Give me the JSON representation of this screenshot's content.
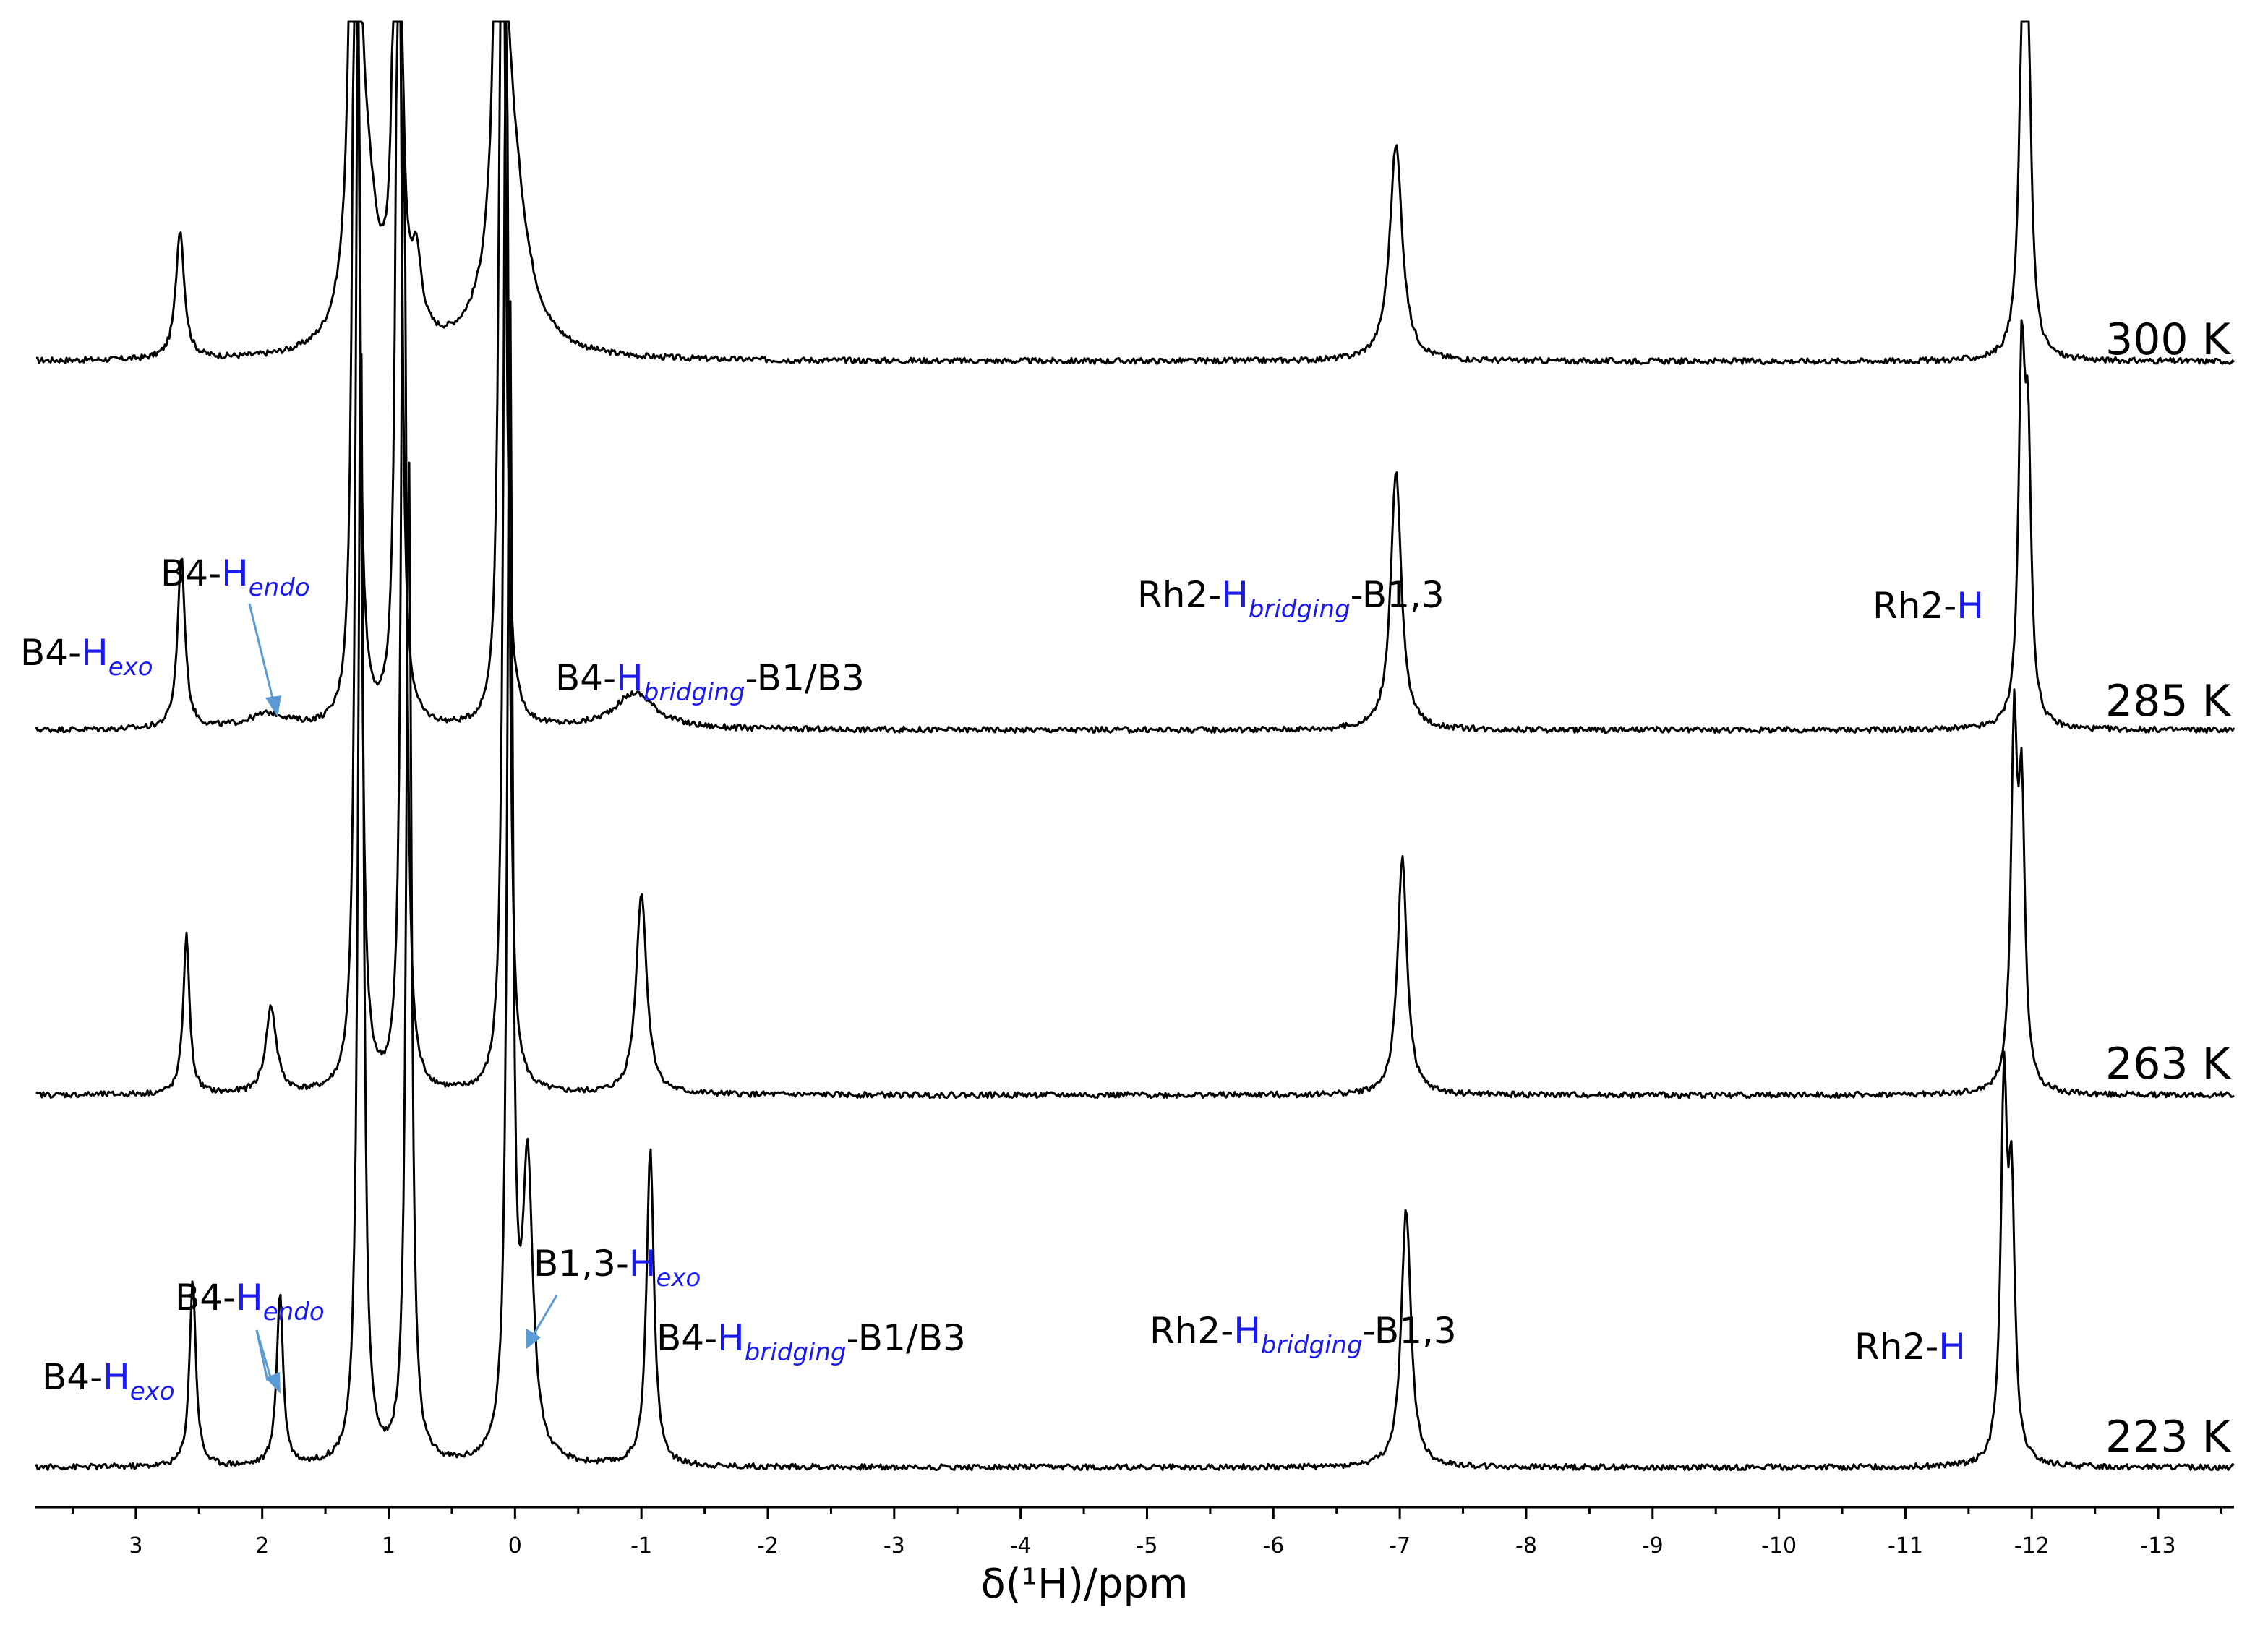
{
  "chart_data": {
    "type": "line",
    "xlabel": "δ(¹H)/ppm",
    "xlim": [
      3.8,
      -13.6
    ],
    "x_ticks": [
      "3",
      "2",
      "1",
      "0",
      "-1",
      "-2",
      "-3",
      "-4",
      "-5",
      "-6",
      "-7",
      "-8",
      "-9",
      "-10",
      "-11",
      "-12",
      "-13"
    ],
    "series": [
      {
        "name": "300 K",
        "peaks": [
          {
            "ppm": 2.65,
            "height": 0.18,
            "width": 0.04
          },
          {
            "ppm": 1.27,
            "height": 1.6,
            "width": 0.025
          },
          {
            "ppm": 1.2,
            "height": 0.25,
            "width": 0.12
          },
          {
            "ppm": 0.93,
            "height": 1.4,
            "width": 0.025
          },
          {
            "ppm": 0.78,
            "height": 0.1,
            "width": 0.05
          },
          {
            "ppm": 0.12,
            "height": 1.6,
            "width": 0.025
          },
          {
            "ppm": 0.05,
            "height": 0.3,
            "width": 0.15
          },
          {
            "ppm": -6.97,
            "height": 0.3,
            "width": 0.06
          },
          {
            "ppm": -11.93,
            "height": 0.45,
            "width": 0.035
          },
          {
            "ppm": -11.97,
            "height": 0.35,
            "width": 0.03
          }
        ]
      },
      {
        "name": "285 K",
        "peaks": [
          {
            "ppm": 2.64,
            "height": 0.24,
            "width": 0.035
          },
          {
            "ppm": 1.95,
            "height": 0.02,
            "width": 0.2
          },
          {
            "ppm": 1.26,
            "height": 1.6,
            "width": 0.025
          },
          {
            "ppm": 0.92,
            "height": 1.4,
            "width": 0.025
          },
          {
            "ppm": 0.1,
            "height": 1.6,
            "width": 0.025
          },
          {
            "ppm": -0.95,
            "height": 0.05,
            "width": 0.2
          },
          {
            "ppm": -6.97,
            "height": 0.36,
            "width": 0.05
          },
          {
            "ppm": -11.92,
            "height": 0.48,
            "width": 0.03
          },
          {
            "ppm": -11.97,
            "height": 0.35,
            "width": 0.03
          }
        ]
      },
      {
        "name": "263 K",
        "peaks": [
          {
            "ppm": 2.6,
            "height": 0.22,
            "width": 0.03
          },
          {
            "ppm": 1.93,
            "height": 0.12,
            "width": 0.05
          },
          {
            "ppm": 1.24,
            "height": 1.6,
            "width": 0.025
          },
          {
            "ppm": 0.88,
            "height": 1.4,
            "width": 0.025
          },
          {
            "ppm": 0.07,
            "height": 1.6,
            "width": 0.025
          },
          {
            "ppm": -1.0,
            "height": 0.28,
            "width": 0.05
          },
          {
            "ppm": -7.02,
            "height": 0.33,
            "width": 0.045
          },
          {
            "ppm": -11.86,
            "height": 0.48,
            "width": 0.03
          },
          {
            "ppm": -11.92,
            "height": 0.38,
            "width": 0.03
          }
        ]
      },
      {
        "name": "223 K",
        "peaks": [
          {
            "ppm": 2.55,
            "height": 0.26,
            "width": 0.03
          },
          {
            "ppm": 1.86,
            "height": 0.24,
            "width": 0.03
          },
          {
            "ppm": 1.22,
            "height": 1.6,
            "width": 0.025
          },
          {
            "ppm": 0.84,
            "height": 1.4,
            "width": 0.025
          },
          {
            "ppm": 0.04,
            "height": 1.6,
            "width": 0.025
          },
          {
            "ppm": -0.1,
            "height": 0.4,
            "width": 0.05
          },
          {
            "ppm": -1.07,
            "height": 0.44,
            "width": 0.035
          },
          {
            "ppm": -7.05,
            "height": 0.36,
            "width": 0.045
          },
          {
            "ppm": -11.78,
            "height": 0.5,
            "width": 0.03
          },
          {
            "ppm": -11.84,
            "height": 0.35,
            "width": 0.03
          }
        ]
      }
    ],
    "temperature_labels": [
      "300 K",
      "285 K",
      "263 K",
      "223 K"
    ],
    "annotations_285K": [
      {
        "prefix": "B4-",
        "h": "H",
        "sub": "exo",
        "suffix": ""
      },
      {
        "prefix": "B4-",
        "h": "H",
        "sub": "endo",
        "suffix": ""
      },
      {
        "prefix": "B4-",
        "h": "H",
        "sub": "bridging",
        "suffix": "-B1/B3"
      },
      {
        "prefix": "Rh2-",
        "h": "H",
        "sub": "bridging",
        "suffix": "-B1,3"
      },
      {
        "prefix": "Rh2-",
        "h": "H",
        "sub": "",
        "suffix": ""
      }
    ],
    "annotations_223K": [
      {
        "prefix": "B4-",
        "h": "H",
        "sub": "exo",
        "suffix": ""
      },
      {
        "prefix": "B4-",
        "h": "H",
        "sub": "endo",
        "suffix": ""
      },
      {
        "prefix": "B1,3-",
        "h": "H",
        "sub": "exo",
        "suffix": ""
      },
      {
        "prefix": "B4-",
        "h": "H",
        "sub": "bridging",
        "suffix": "-B1/B3"
      },
      {
        "prefix": "Rh2-",
        "h": "H",
        "sub": "bridging",
        "suffix": "-B1,3"
      },
      {
        "prefix": "Rh2-",
        "h": "H",
        "sub": "",
        "suffix": ""
      }
    ],
    "colors": {
      "trace": "#000000",
      "label_highlight": "#1a1af0",
      "arrow": "#5b9bd5"
    }
  }
}
